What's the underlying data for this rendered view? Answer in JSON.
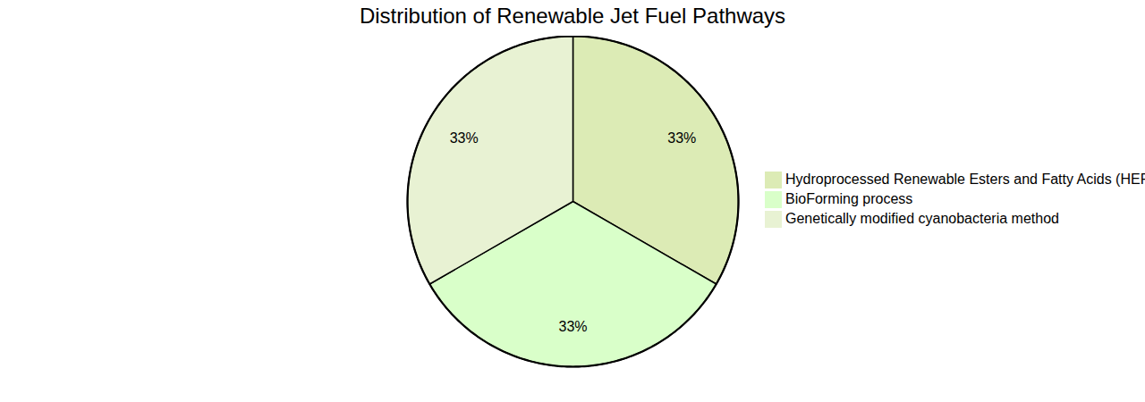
{
  "chart_data": {
    "type": "pie",
    "title": "Distribution of Renewable Jet Fuel Pathways",
    "categories": [
      "Hydroprocessed Renewable Esters and Fatty Acids (HEFA)",
      "BioForming process",
      "Genetically modified cyanobacteria method"
    ],
    "values": [
      33,
      33,
      33
    ],
    "value_labels": [
      "33%",
      "33%",
      "33%"
    ],
    "colors": [
      "#dcebb5",
      "#d9ffc9",
      "#e8f2d3"
    ],
    "data_labels": true,
    "legend": "right"
  }
}
